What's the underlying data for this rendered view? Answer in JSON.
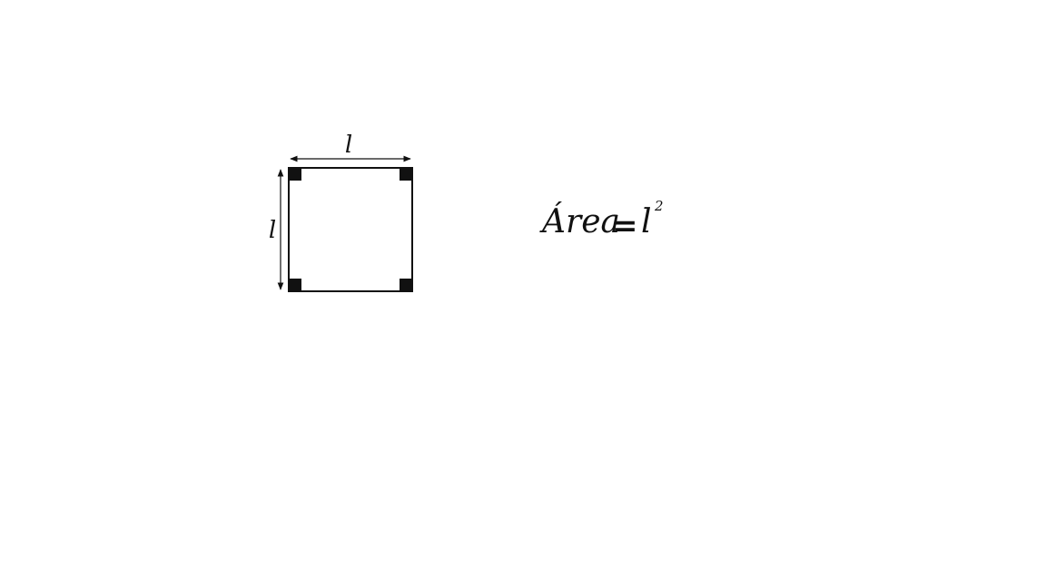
{
  "diagram": {
    "square": {
      "side_label_top": "l",
      "side_label_left": "l",
      "corner_marker_icon": "right-angle-marker-icon"
    },
    "formula": {
      "lhs": "Área",
      "equals": "=",
      "base": "l",
      "exponent": "2"
    },
    "colors": {
      "stroke": "#111111",
      "background": "#ffffff"
    }
  }
}
